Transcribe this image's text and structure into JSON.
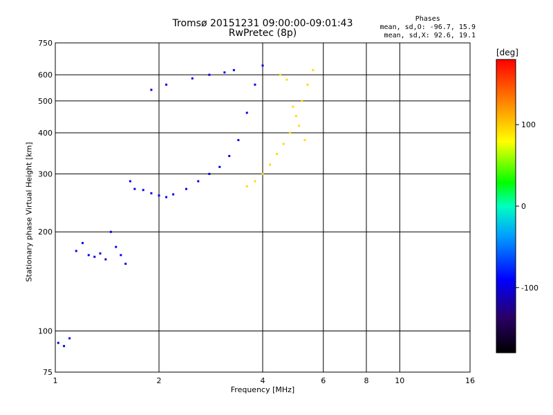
{
  "chart_data": {
    "type": "scatter",
    "title_line1": "Tromsø 20151231 09:00:00-09:01:43",
    "title_line2": "RwPretec (8p)",
    "xlabel": "Frequency [MHz]",
    "ylabel": "Stationary phase Virtual Height [km]",
    "x_scale": "log",
    "y_scale": "log",
    "xlim": [
      1,
      16
    ],
    "ylim": [
      75,
      750
    ],
    "x_ticks": [
      "1",
      "2",
      "4",
      "6",
      "8",
      "10",
      "16"
    ],
    "y_ticks": [
      "75",
      "100",
      "200",
      "300",
      "400",
      "500",
      "600",
      "750"
    ],
    "grid": true,
    "phases": {
      "title": "Phases",
      "o_line": "mean, sd,O: -96.7, 15.9",
      "x_line": "mean, sd,X:  92.6, 19.1"
    },
    "colorbar": {
      "unit": "[deg]",
      "range": [
        -180,
        180
      ],
      "ticks": [
        "100",
        "0",
        "-100"
      ]
    },
    "series": [
      {
        "name": "O",
        "color_value": -96.7,
        "x": [
          1.02,
          1.06,
          1.1,
          1.15,
          1.2,
          1.25,
          1.3,
          1.35,
          1.4,
          1.45,
          1.5,
          1.55,
          1.6,
          1.65,
          1.7,
          1.8,
          1.9,
          2.0,
          2.1,
          2.2,
          2.4,
          2.6,
          2.8,
          3.0,
          3.2,
          3.4,
          3.6,
          3.8,
          4.0,
          1.9,
          2.1,
          2.5,
          2.8,
          3.1,
          3.3
        ],
        "y": [
          92,
          90,
          95,
          175,
          185,
          170,
          168,
          172,
          165,
          200,
          180,
          170,
          160,
          285,
          270,
          268,
          262,
          258,
          255,
          260,
          270,
          285,
          300,
          315,
          340,
          380,
          460,
          560,
          640,
          540,
          560,
          585,
          600,
          610,
          620
        ]
      },
      {
        "name": "X",
        "color_value": 92.6,
        "x": [
          3.6,
          3.8,
          4.0,
          4.2,
          4.4,
          4.6,
          4.8,
          5.0,
          5.2,
          5.4,
          5.6,
          4.5,
          4.7,
          4.9,
          5.1,
          5.3
        ],
        "y": [
          275,
          285,
          300,
          320,
          345,
          370,
          400,
          450,
          500,
          560,
          620,
          600,
          580,
          480,
          420,
          380
        ]
      }
    ]
  }
}
